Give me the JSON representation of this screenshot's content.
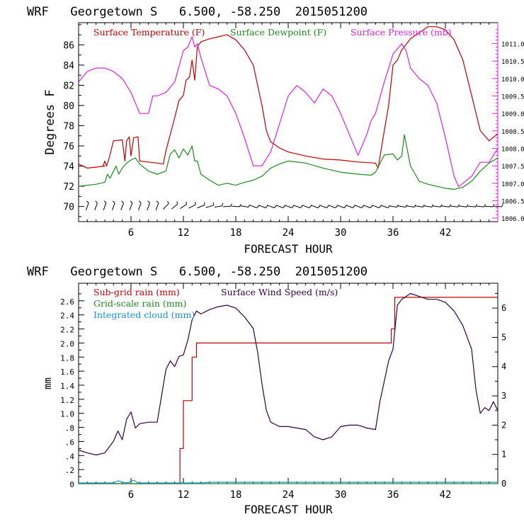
{
  "chart_data": [
    {
      "type": "line",
      "title": "WRF   Georgetown S   6.500, -58.250  2015051200",
      "xlabel": "FORECAST HOUR",
      "ylabel": "Degrees F",
      "xlim": [
        0,
        48
      ],
      "ylim": [
        68.5,
        88.2
      ],
      "y2lim": [
        1005.9,
        1011.6
      ],
      "x_ticks": [
        "6",
        "12",
        "18",
        "24",
        "30",
        "36",
        "42"
      ],
      "x_tick_values": [
        6,
        12,
        18,
        24,
        30,
        36,
        42
      ],
      "y_ticks": [
        "70",
        "72",
        "74",
        "76",
        "78",
        "80",
        "82",
        "84",
        "86"
      ],
      "y_tick_values": [
        70,
        72,
        74,
        76,
        78,
        80,
        82,
        84,
        86
      ],
      "y2_ticks": [
        "1006.0",
        "1006.5",
        "1007.0",
        "1007.5",
        "1008.0",
        "1008.5",
        "1009.0",
        "1009.5",
        "1010.0",
        "1010.5",
        "1011.0"
      ],
      "y2_tick_values": [
        1006.0,
        1006.5,
        1007.0,
        1007.5,
        1008.0,
        1008.5,
        1009.0,
        1009.5,
        1010.0,
        1010.5,
        1011.0
      ],
      "legend": [
        "Surface Temperature (F)",
        "Surface Dewpoint (F)",
        "Surface Pressure (mb)"
      ],
      "series": [
        {
          "name": "Surface Temperature (F)",
          "axis": "left",
          "color": "#c00000",
          "x": [
            0,
            1,
            2,
            3,
            2.8,
            3,
            3.2,
            3.5,
            4,
            5,
            5.3,
            5.5,
            5.8,
            6,
            6.3,
            6.8,
            7,
            8,
            9,
            9.7,
            10,
            11,
            11.5,
            12,
            12.3,
            12.7,
            13,
            13.3,
            13.6,
            14,
            15,
            16,
            17,
            18,
            19,
            20,
            21,
            21.5,
            22,
            23,
            24,
            26,
            28,
            30,
            32,
            34,
            34.3,
            35,
            35.5,
            36,
            36.5,
            37,
            38,
            39,
            40,
            41,
            42,
            43,
            44,
            45,
            46,
            47,
            48
          ],
          "y": [
            74.2,
            73.8,
            73.9,
            74,
            74,
            74.5,
            74,
            74.8,
            76.5,
            76.6,
            74.5,
            76.5,
            76.9,
            75,
            76.8,
            76.9,
            74.5,
            74.4,
            74.3,
            74.2,
            75.5,
            78.8,
            80.5,
            81,
            82.5,
            82.8,
            84.5,
            82.5,
            85.8,
            86.3,
            86.6,
            86.8,
            87,
            86.5,
            85.5,
            84,
            80,
            77.5,
            76.4,
            75.8,
            75.4,
            75,
            74.7,
            74.6,
            74.4,
            74.3,
            73.8,
            77.5,
            80,
            84,
            84.5,
            85.5,
            86.6,
            87.2,
            87.8,
            87.8,
            87.5,
            86.5,
            84.5,
            81,
            77.5,
            76.5,
            77.2
          ]
        },
        {
          "name": "Surface Dewpoint (F)",
          "axis": "left",
          "color": "#1e8a1e",
          "x": [
            0,
            1,
            2,
            3,
            3.3,
            3.6,
            4,
            4.3,
            4.6,
            5,
            5.5,
            6,
            6.5,
            7,
            8,
            9,
            10,
            10.5,
            11,
            11.5,
            12,
            12.5,
            13,
            13.3,
            13.6,
            14,
            15,
            16,
            17,
            18,
            19,
            20,
            21,
            22,
            23,
            24,
            26,
            28,
            30,
            32,
            33.5,
            34,
            35,
            36,
            36.5,
            37,
            37.3,
            38,
            39,
            40,
            41,
            42,
            43,
            44,
            45,
            46,
            47,
            48
          ],
          "y": [
            72,
            72.1,
            72.2,
            72.4,
            73.2,
            72.8,
            73.5,
            74,
            73.2,
            73.8,
            74.3,
            74.6,
            74.8,
            74.2,
            73.5,
            73.2,
            73.5,
            75.2,
            75.6,
            74.8,
            75.7,
            75.1,
            76,
            74.5,
            74.5,
            73.2,
            72.6,
            72.1,
            72.3,
            72.1,
            72.4,
            72.6,
            73,
            73.8,
            74.2,
            74.5,
            74.3,
            73.8,
            73.4,
            73.2,
            73.1,
            73.4,
            75.1,
            75.2,
            74.6,
            75,
            77.1,
            74,
            72.5,
            72.2,
            72,
            71.8,
            71.7,
            71.9,
            72.5,
            73.5,
            74.3,
            74.8
          ]
        },
        {
          "name": "Surface Pressure (mb)",
          "axis": "right",
          "color": "#e020e0",
          "x": [
            0,
            1,
            2,
            3,
            4,
            5,
            6,
            7,
            8,
            8.5,
            9,
            10,
            11,
            12,
            12.5,
            13,
            13.3,
            13.6,
            14,
            15,
            16,
            17,
            18,
            19,
            19.5,
            20,
            21,
            22,
            23,
            24,
            25,
            26,
            27,
            28,
            29,
            30,
            31,
            32,
            33,
            33.5,
            34,
            35,
            36,
            37,
            37.5,
            38,
            39,
            40,
            41,
            42,
            43,
            43.5,
            44,
            45,
            46,
            47,
            48
          ],
          "y": [
            1009.9,
            1010.2,
            1010.3,
            1010.3,
            1010.2,
            1010,
            1009.6,
            1009.0,
            1009.0,
            1009.5,
            1009.5,
            1009.6,
            1009.9,
            1010.8,
            1010.9,
            1011.2,
            1010.9,
            1011.0,
            1010.6,
            1009.8,
            1009.7,
            1009.5,
            1009.0,
            1008.3,
            1007.9,
            1007.5,
            1007.5,
            1007.9,
            1008.7,
            1009.5,
            1009.8,
            1009.6,
            1009.3,
            1009.7,
            1009.5,
            1009.0,
            1008.4,
            1007.8,
            1008.4,
            1008.8,
            1009.0,
            1009.9,
            1010.7,
            1011.0,
            1010.8,
            1010.3,
            1010.0,
            1009.8,
            1009.3,
            1008.3,
            1007.2,
            1006.9,
            1007.0,
            1007.2,
            1007.6,
            1007.6,
            1008.0
          ]
        }
      ],
      "wind_barbs": {
        "x_start": 1,
        "x_end": 48,
        "spacing_hours": 1,
        "description": "surface wind barbs along the bottom"
      }
    },
    {
      "type": "line",
      "title": "WRF   Georgetown S   6.500, -58.250  2015051200",
      "xlabel": "FORECAST HOUR",
      "ylabel": "mm",
      "xlim": [
        0,
        48
      ],
      "ylim": [
        0,
        2.85
      ],
      "y2lim": [
        0,
        6.85
      ],
      "x_ticks": [
        "6",
        "12",
        "18",
        "24",
        "30",
        "36",
        "42"
      ],
      "x_tick_values": [
        6,
        12,
        18,
        24,
        30,
        36,
        42
      ],
      "y_ticks": [
        "0",
        ".2",
        ".4",
        ".6",
        ".8",
        "1.0",
        "1.2",
        "1.4",
        "1.6",
        "1.8",
        "2.0",
        "2.2",
        "2.4",
        "2.6"
      ],
      "y_tick_values": [
        0,
        0.2,
        0.4,
        0.6,
        0.8,
        1.0,
        1.2,
        1.4,
        1.6,
        1.8,
        2.0,
        2.2,
        2.4,
        2.6
      ],
      "y2_ticks": [
        "0",
        "1",
        "2",
        "3",
        "4",
        "5",
        "6"
      ],
      "y2_tick_values": [
        0,
        1,
        2,
        3,
        4,
        5,
        6
      ],
      "legend": [
        "Sub-grid rain (mm)",
        "Surface Wind Speed (m/s)",
        "Grid-scale rain (mm)",
        "Integrated cloud (mm)"
      ],
      "series": [
        {
          "name": "Sub-grid rain (mm)",
          "axis": "left",
          "color": "#c00000",
          "x": [
            0,
            11.6,
            11.6,
            12.0,
            12.0,
            13.0,
            13.0,
            13.5,
            13.5,
            35.8,
            35.8,
            36.2,
            36.2,
            48
          ],
          "y": [
            0,
            0,
            0.5,
            0.5,
            1.18,
            1.18,
            1.8,
            1.8,
            2.0,
            2.0,
            2.2,
            2.2,
            2.65,
            2.65
          ]
        },
        {
          "name": "Surface Wind Speed (m/s)",
          "axis": "right",
          "color": "#30004a",
          "x": [
            0,
            1,
            2,
            3,
            4,
            4.5,
            5,
            5.5,
            6,
            6.5,
            7,
            8,
            9,
            10,
            10.5,
            11,
            11.5,
            12,
            12.5,
            13,
            13.5,
            14,
            15,
            16,
            17,
            18,
            19,
            20,
            20.5,
            21,
            21.5,
            22,
            23,
            24,
            25,
            26,
            27,
            28,
            29,
            30,
            31,
            32,
            33,
            34,
            34.5,
            35,
            35.5,
            36,
            36.5,
            37,
            38,
            39,
            40,
            41,
            42,
            43,
            44,
            45,
            45.5,
            46,
            46.5,
            47,
            47.5,
            48
          ],
          "y": [
            1.15,
            1.05,
            0.98,
            1.05,
            1.45,
            1.8,
            1.5,
            2.2,
            2.45,
            1.9,
            2.05,
            2.1,
            2.1,
            3.9,
            4.2,
            4.0,
            4.35,
            4.4,
            4.9,
            5.6,
            5.9,
            5.8,
            5.95,
            6.05,
            6.1,
            6.0,
            5.7,
            5.3,
            4.5,
            3.4,
            2.5,
            2.1,
            1.95,
            1.95,
            1.9,
            1.85,
            1.6,
            1.5,
            1.6,
            1.95,
            2.0,
            2.0,
            1.9,
            1.85,
            2.8,
            3.5,
            4.2,
            4.6,
            6.1,
            6.3,
            6.5,
            6.4,
            6.3,
            6.3,
            6.2,
            5.9,
            5.4,
            4.6,
            3.2,
            2.4,
            2.6,
            2.5,
            2.8,
            2.5
          ]
        },
        {
          "name": "Grid-scale rain (mm)",
          "axis": "left",
          "color": "#1e8a1e",
          "x": [
            0,
            48
          ],
          "y": [
            0,
            0
          ]
        },
        {
          "name": "Integrated cloud (mm)",
          "axis": "left",
          "color": "#1a8fd8",
          "x": [
            0,
            4,
            4.5,
            5,
            5.5,
            6,
            6.3,
            6.8,
            7,
            10,
            14,
            15,
            16,
            36,
            48
          ],
          "y": [
            0.01,
            0.01,
            0.04,
            0.02,
            0.01,
            0.03,
            0.05,
            0.01,
            0.01,
            0.01,
            0.01,
            0.02,
            0.02,
            0.02,
            0.02
          ]
        }
      ]
    }
  ]
}
